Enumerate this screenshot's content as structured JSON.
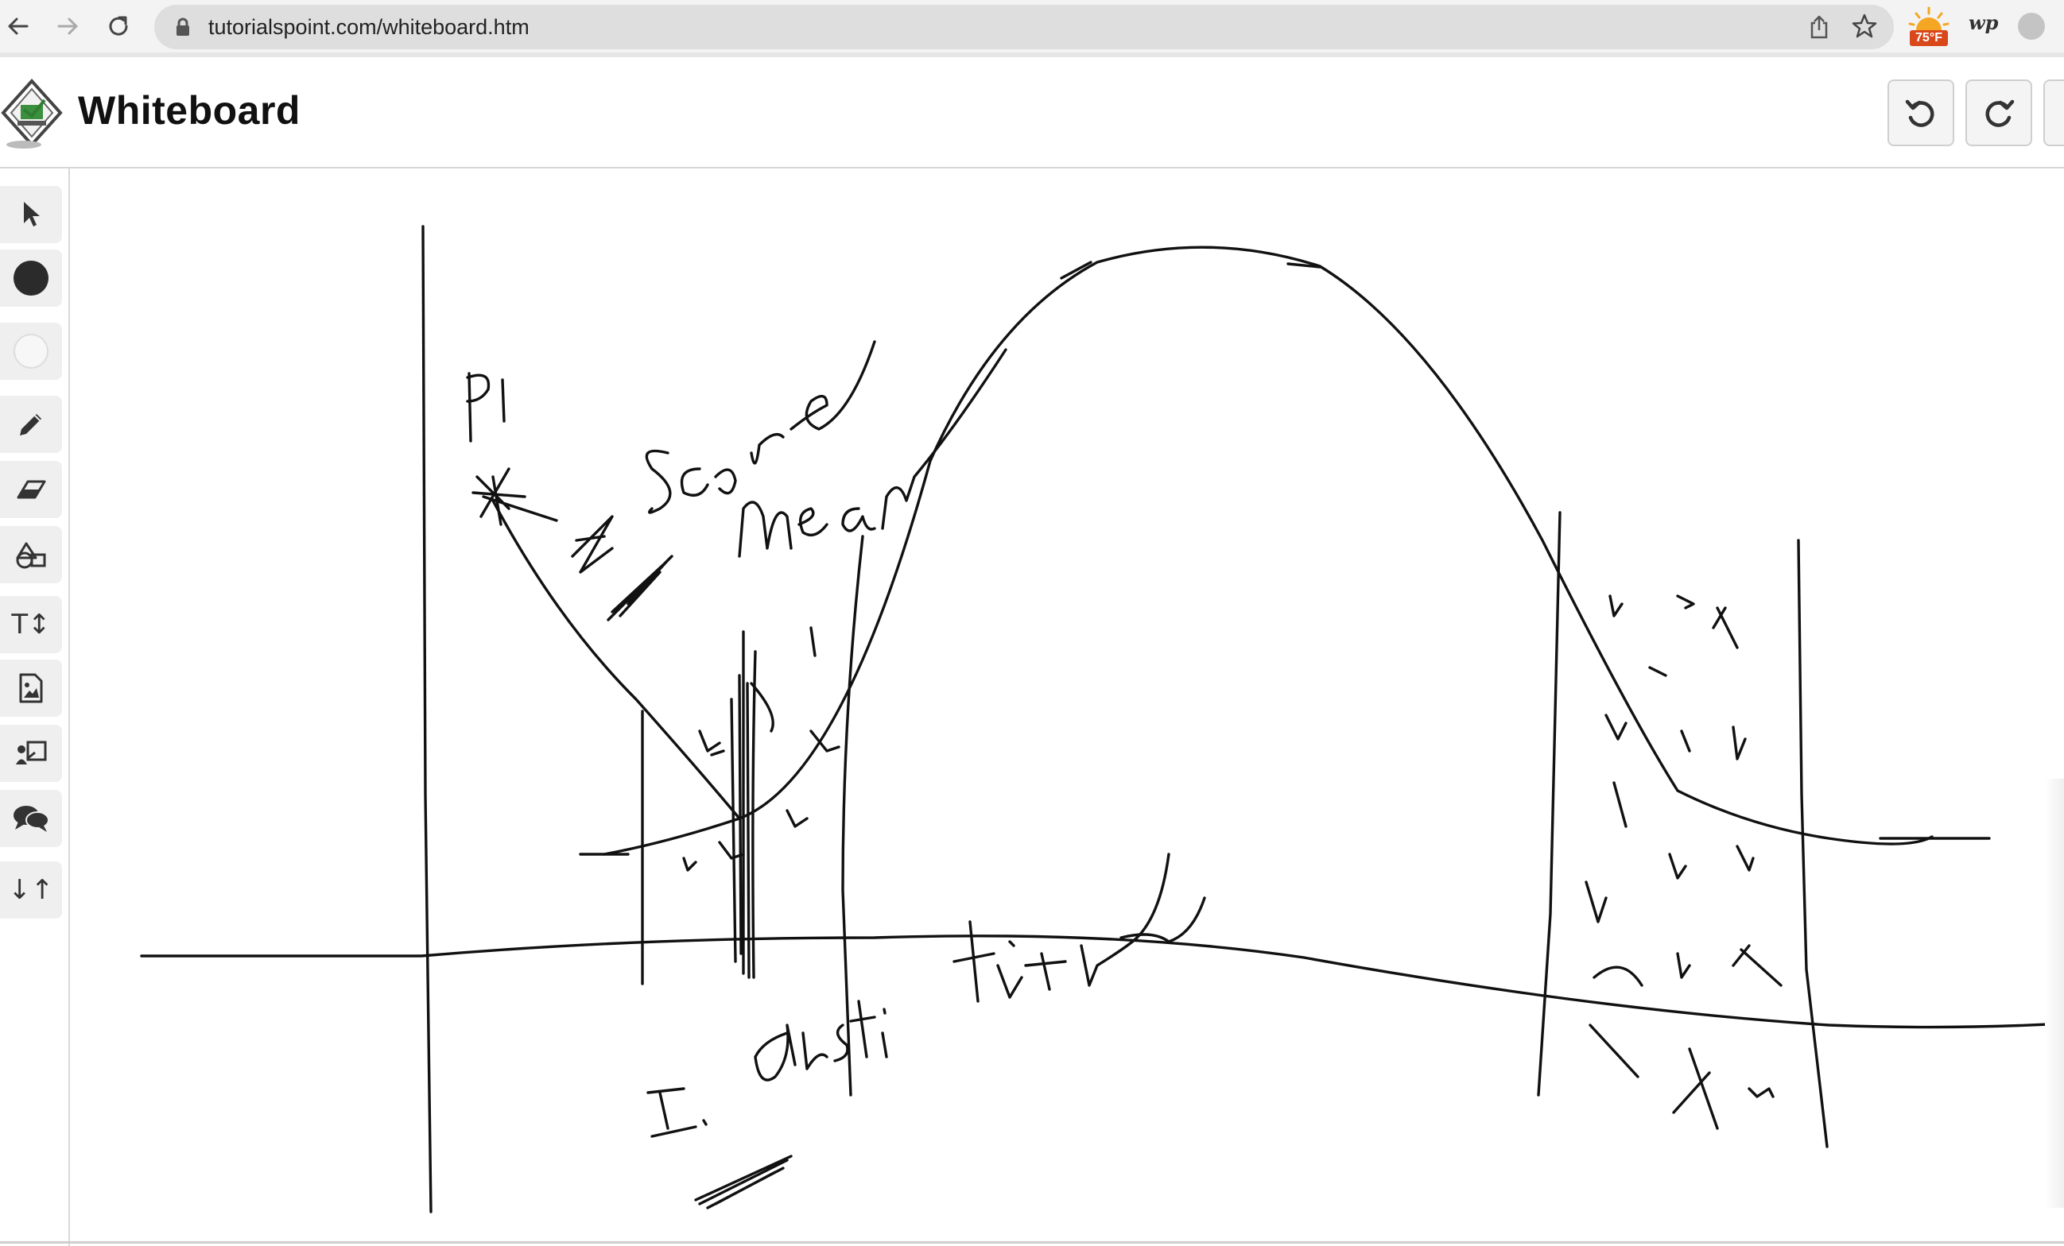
{
  "browser": {
    "url": "tutorialspoint.com/whiteboard.htm",
    "weather_temp": "75°F",
    "extension_label": "wp",
    "icons": [
      "back-icon",
      "forward-icon",
      "reload-icon",
      "lock-icon",
      "share-icon",
      "star-icon",
      "weather-icon",
      "profile-icon"
    ]
  },
  "app": {
    "title": "Whiteboard",
    "header_buttons": [
      "undo-icon",
      "redo-icon"
    ]
  },
  "toolbar": {
    "tools": [
      {
        "name": "select-tool",
        "icon": "pointer-icon"
      },
      {
        "name": "color-black-tool",
        "icon": "black-circle-icon",
        "color": "#2b2b2b"
      },
      {
        "name": "color-white-tool",
        "icon": "white-circle-icon",
        "color": "#f7f7f7"
      },
      {
        "name": "pencil-tool",
        "icon": "pencil-icon"
      },
      {
        "name": "eraser-tool",
        "icon": "eraser-icon"
      },
      {
        "name": "shapes-tool",
        "icon": "shapes-icon"
      },
      {
        "name": "text-tool",
        "icon": "text-size-icon",
        "glyph": "T↕"
      },
      {
        "name": "image-tool",
        "icon": "image-file-icon"
      },
      {
        "name": "presenter-tool",
        "icon": "presenter-icon"
      },
      {
        "name": "chat-tool",
        "icon": "chat-bubbles-icon"
      },
      {
        "name": "sort-tool",
        "icon": "sort-arrows-icon",
        "glyph": "↓↑"
      }
    ]
  },
  "canvas": {
    "content": "hand-drawn sketch",
    "stroke_color": "#111111"
  }
}
